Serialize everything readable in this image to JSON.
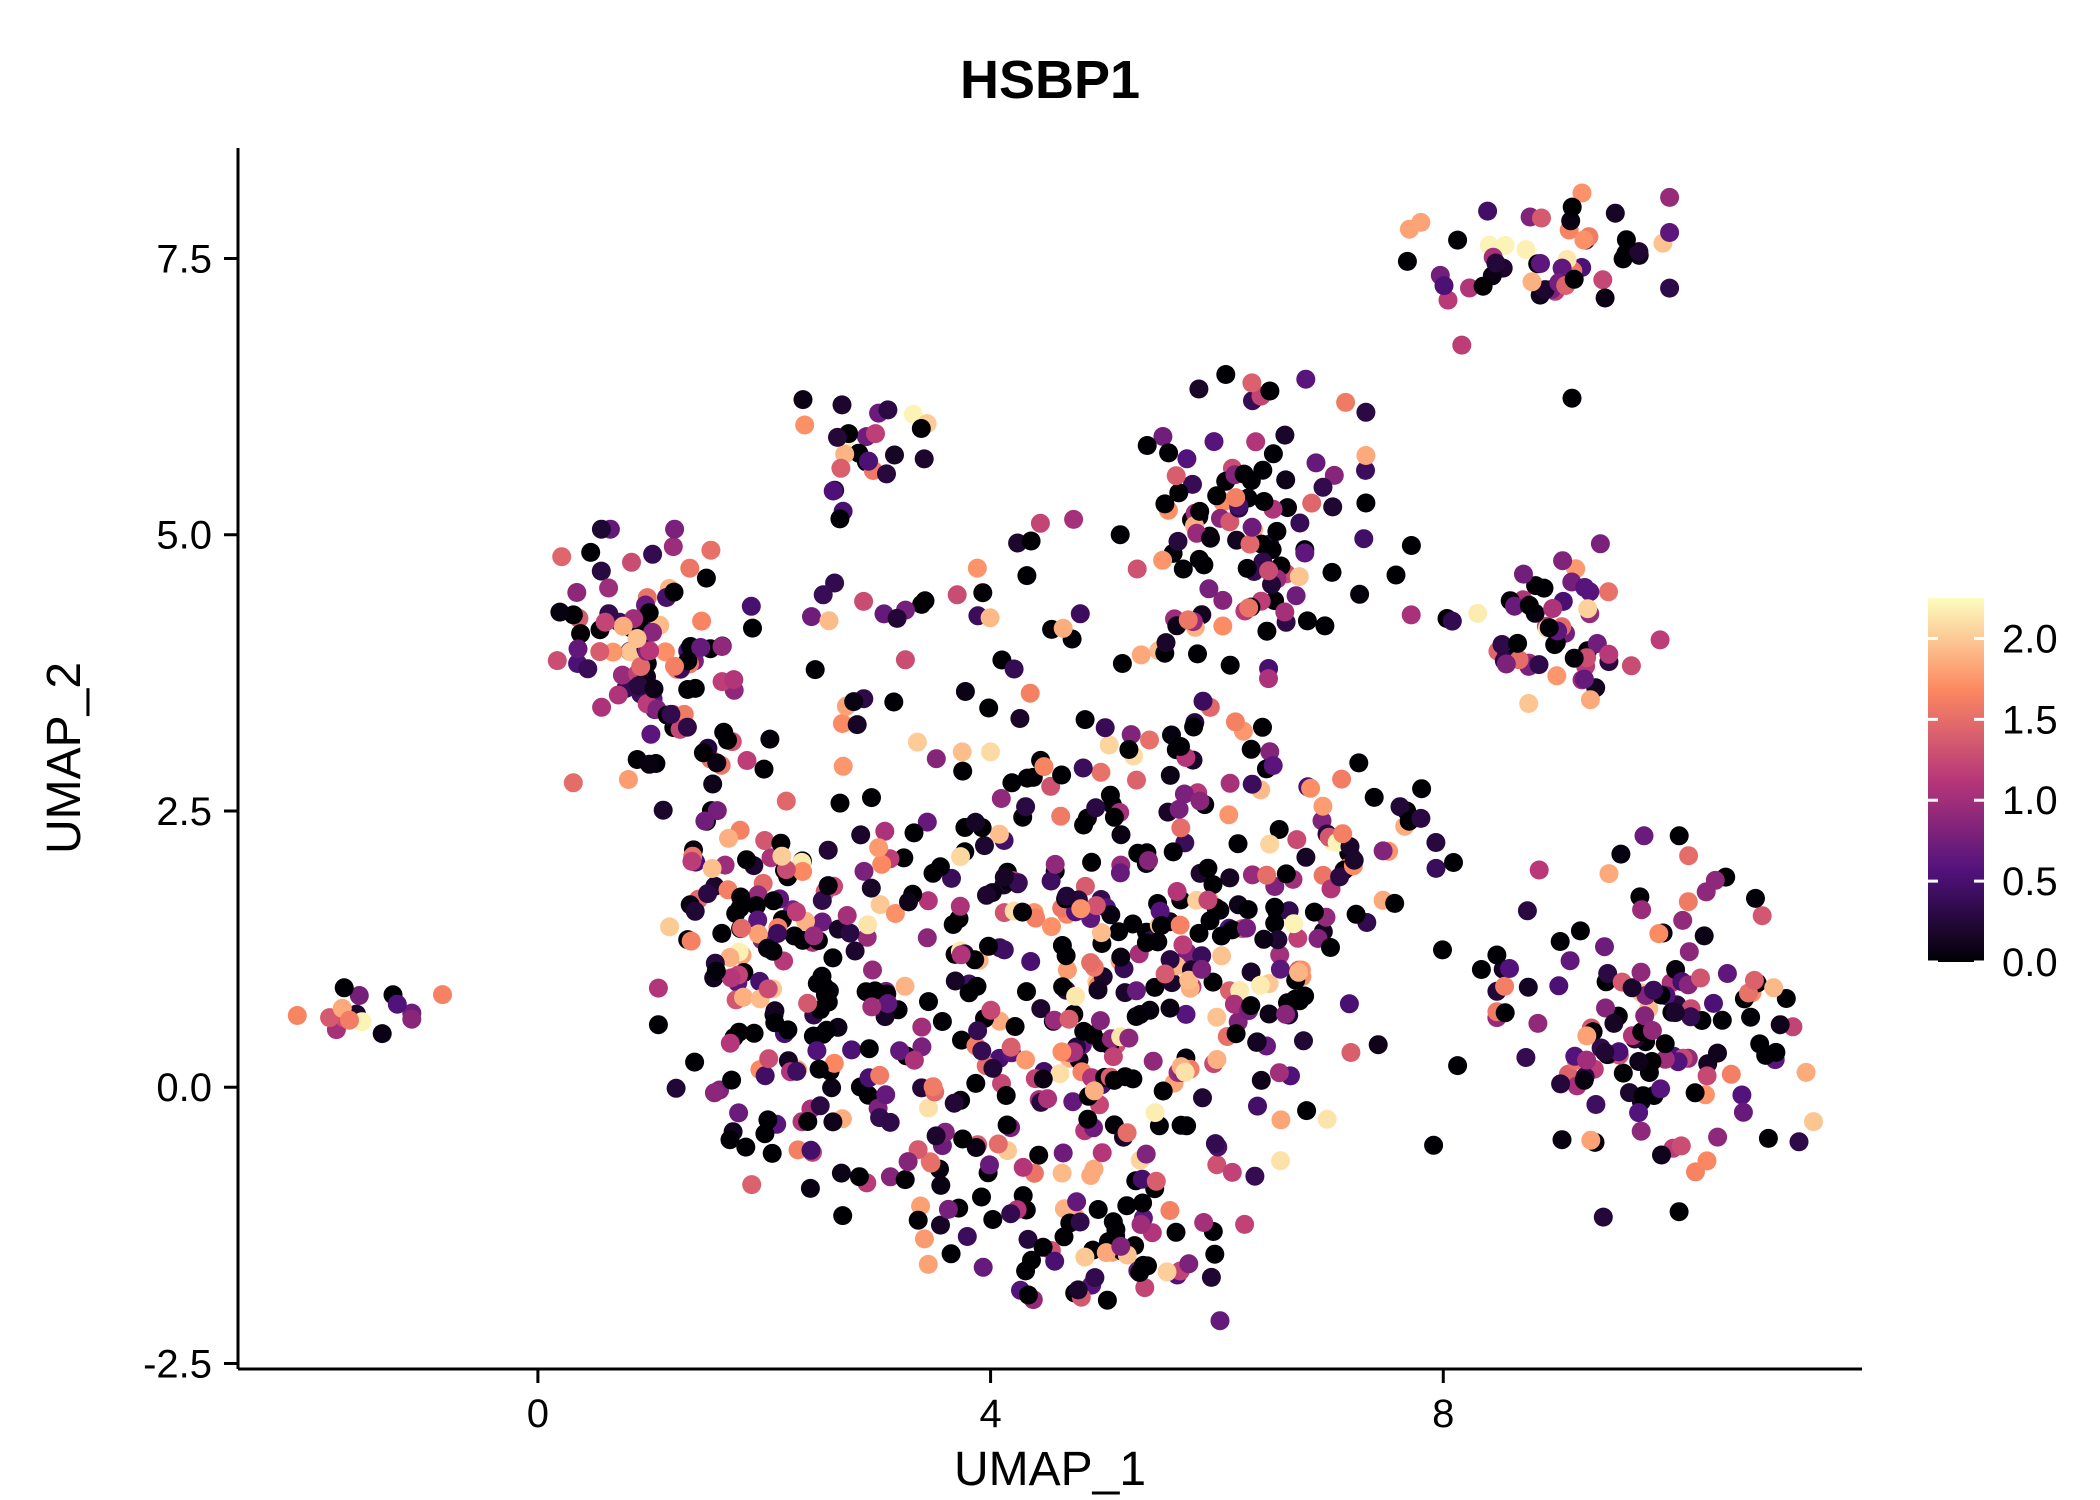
{
  "chart_data": {
    "type": "scatter",
    "title": "HSBP1",
    "xlabel": "UMAP_1",
    "ylabel": "UMAP_2",
    "xlim": [
      -2.65,
      11.7
    ],
    "ylim": [
      -2.55,
      8.5
    ],
    "xticks": [
      0,
      4,
      8
    ],
    "xtick_labels": [
      "0",
      "4",
      "8"
    ],
    "yticks": [
      -2.5,
      0.0,
      2.5,
      5.0,
      7.5
    ],
    "ytick_labels": [
      "-2.5",
      "0.0",
      "2.5",
      "5.0",
      "7.5"
    ],
    "grid": false,
    "background_color": "#ffffff",
    "axis_color": "#000000",
    "point_radius": 9.5,
    "seed": 7,
    "colormap": [
      {
        "t": 0.0,
        "color": "#000004"
      },
      {
        "t": 0.25,
        "color": "#51127c"
      },
      {
        "t": 0.5,
        "color": "#b73779"
      },
      {
        "t": 0.75,
        "color": "#fc8961"
      },
      {
        "t": 1.0,
        "color": "#fcfdbf"
      }
    ],
    "legend": {
      "position": "right",
      "vmin": 0.0,
      "vmax": 2.25,
      "ticks": [
        0.0,
        0.5,
        1.0,
        1.5,
        2.0
      ],
      "tick_labels": [
        "0.0",
        "0.5",
        "1.0",
        "1.5",
        "2.0"
      ]
    },
    "value_model": {
      "p_zero": 0.26,
      "gamma": 1.35,
      "vmax": 2.2
    },
    "clusters": [
      {
        "cx": -1.62,
        "cy": 0.68,
        "sx": 0.22,
        "sy": 0.13,
        "n": 16,
        "hot": 1.1
      },
      {
        "cx": -0.85,
        "cy": 0.8,
        "sx": 0.04,
        "sy": 0.04,
        "n": 1,
        "hot": 1.5
      },
      {
        "cx": 1.0,
        "cy": 3.9,
        "sx": 0.42,
        "sy": 0.5,
        "n": 95,
        "hot": 0.95
      },
      {
        "cx": 1.35,
        "cy": 2.9,
        "sx": 0.3,
        "sy": 0.25,
        "n": 18,
        "hot": 0.9
      },
      {
        "cx": 1.85,
        "cy": 1.55,
        "sx": 0.35,
        "sy": 0.5,
        "n": 42,
        "hot": 1.0
      },
      {
        "cx": 2.92,
        "cy": 5.9,
        "sx": 0.26,
        "sy": 0.22,
        "n": 24,
        "hot": 1.1
      },
      {
        "cx": 2.65,
        "cy": 5.25,
        "sx": 0.12,
        "sy": 0.1,
        "n": 3,
        "hot": 0.8
      },
      {
        "cx": 3.9,
        "cy": 4.35,
        "sx": 0.75,
        "sy": 0.25,
        "n": 26,
        "hot": 0.9
      },
      {
        "cx": 4.7,
        "cy": 5.05,
        "sx": 0.35,
        "sy": 0.12,
        "n": 4,
        "hot": 0.7
      },
      {
        "cx": 3.2,
        "cy": 3.3,
        "sx": 0.5,
        "sy": 0.25,
        "n": 14,
        "hot": 0.9
      },
      {
        "cx": 6.35,
        "cy": 5.3,
        "sx": 0.42,
        "sy": 0.5,
        "n": 85,
        "hot": 0.9
      },
      {
        "cx": 6.2,
        "cy": 4.2,
        "sx": 0.3,
        "sy": 0.3,
        "n": 20,
        "hot": 0.9
      },
      {
        "cx": 5.7,
        "cy": 4.0,
        "sx": 0.3,
        "sy": 0.45,
        "n": 10,
        "hot": 0.9
      },
      {
        "cx": 8.85,
        "cy": 7.5,
        "sx": 0.5,
        "sy": 0.26,
        "n": 52,
        "hot": 1.3
      },
      {
        "cx": 7.62,
        "cy": 7.5,
        "sx": 0.04,
        "sy": 0.04,
        "n": 1,
        "hot": 0
      },
      {
        "cx": 8.2,
        "cy": 6.72,
        "sx": 0.05,
        "sy": 0.05,
        "n": 1,
        "hot": 0.8
      },
      {
        "cx": 9.05,
        "cy": 6.2,
        "sx": 0.05,
        "sy": 0.05,
        "n": 1,
        "hot": 1.2
      },
      {
        "cx": 8.95,
        "cy": 4.2,
        "sx": 0.42,
        "sy": 0.33,
        "n": 55,
        "hot": 1.05
      },
      {
        "cx": 7.95,
        "cy": 4.4,
        "sx": 0.15,
        "sy": 0.15,
        "n": 2,
        "hot": 1.0
      },
      {
        "cx": 7.5,
        "cy": 4.85,
        "sx": 0.25,
        "sy": 0.25,
        "n": 4,
        "hot": 0.8
      },
      {
        "cx": 9.9,
        "cy": 0.55,
        "sx": 0.62,
        "sy": 0.75,
        "n": 140,
        "hot": 0.95
      },
      {
        "cx": 8.2,
        "cy": 0.6,
        "sx": 0.3,
        "sy": 0.6,
        "n": 8,
        "hot": 0.9
      },
      {
        "cx": 2.0,
        "cy": 1.6,
        "sx": 0.4,
        "sy": 0.5,
        "n": 45,
        "hot": 1.0
      },
      {
        "cx": 2.1,
        "cy": 0.1,
        "sx": 0.45,
        "sy": 0.55,
        "n": 48,
        "hot": 0.95
      },
      {
        "cx": 3.1,
        "cy": 0.8,
        "sx": 0.5,
        "sy": 0.7,
        "n": 52,
        "hot": 1.0
      },
      {
        "cx": 3.6,
        "cy": -0.9,
        "sx": 0.5,
        "sy": 0.45,
        "n": 35,
        "hot": 0.95
      },
      {
        "cx": 4.4,
        "cy": 0.4,
        "sx": 0.6,
        "sy": 0.7,
        "n": 65,
        "hot": 1.0
      },
      {
        "cx": 4.6,
        "cy": -1.4,
        "sx": 0.5,
        "sy": 0.35,
        "n": 30,
        "hot": 0.9
      },
      {
        "cx": 5.4,
        "cy": -1.2,
        "sx": 0.5,
        "sy": 0.45,
        "n": 40,
        "hot": 0.95
      },
      {
        "cx": 5.3,
        "cy": 0.2,
        "sx": 0.55,
        "sy": 0.6,
        "n": 56,
        "hot": 1.0
      },
      {
        "cx": 5.9,
        "cy": 1.4,
        "sx": 0.55,
        "sy": 0.55,
        "n": 60,
        "hot": 1.0
      },
      {
        "cx": 4.7,
        "cy": 1.7,
        "sx": 0.5,
        "sy": 0.5,
        "n": 48,
        "hot": 1.0
      },
      {
        "cx": 3.6,
        "cy": 2.0,
        "sx": 0.45,
        "sy": 0.45,
        "n": 35,
        "hot": 0.95
      },
      {
        "cx": 6.6,
        "cy": 0.4,
        "sx": 0.45,
        "sy": 0.6,
        "n": 40,
        "hot": 1.0
      },
      {
        "cx": 6.9,
        "cy": 1.9,
        "sx": 0.45,
        "sy": 0.45,
        "n": 40,
        "hot": 1.15
      },
      {
        "cx": 4.9,
        "cy": 2.8,
        "sx": 0.7,
        "sy": 0.35,
        "n": 30,
        "hot": 0.95
      },
      {
        "cx": 6.3,
        "cy": 2.9,
        "sx": 0.4,
        "sy": 0.3,
        "n": 18,
        "hot": 1.0
      },
      {
        "cx": 7.4,
        "cy": 2.3,
        "sx": 0.3,
        "sy": 0.45,
        "n": 12,
        "hot": 1.0
      }
    ]
  }
}
